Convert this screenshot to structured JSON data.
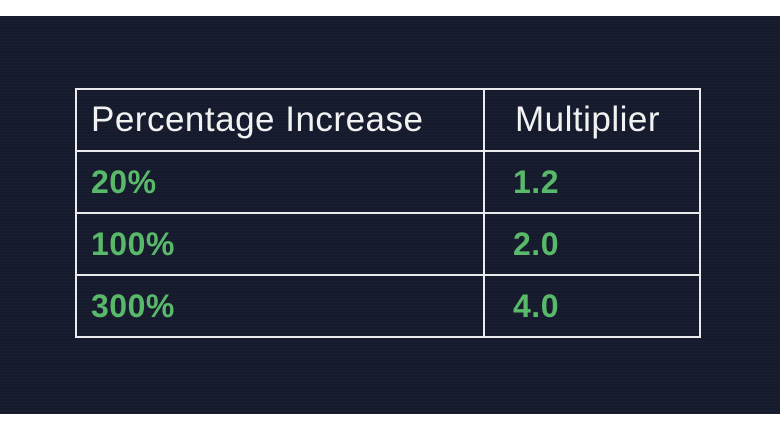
{
  "table": {
    "headers": [
      "Percentage Increase",
      "Multiplier"
    ],
    "rows": [
      [
        "20%",
        "1.2"
      ],
      [
        "100%",
        "2.0"
      ],
      [
        "300%",
        "4.0"
      ]
    ]
  },
  "colors": {
    "background": "#161a2d",
    "header_text": "#f2f2f2",
    "value_text": "#59b96a",
    "grid_lines": "#e9e9ee"
  }
}
